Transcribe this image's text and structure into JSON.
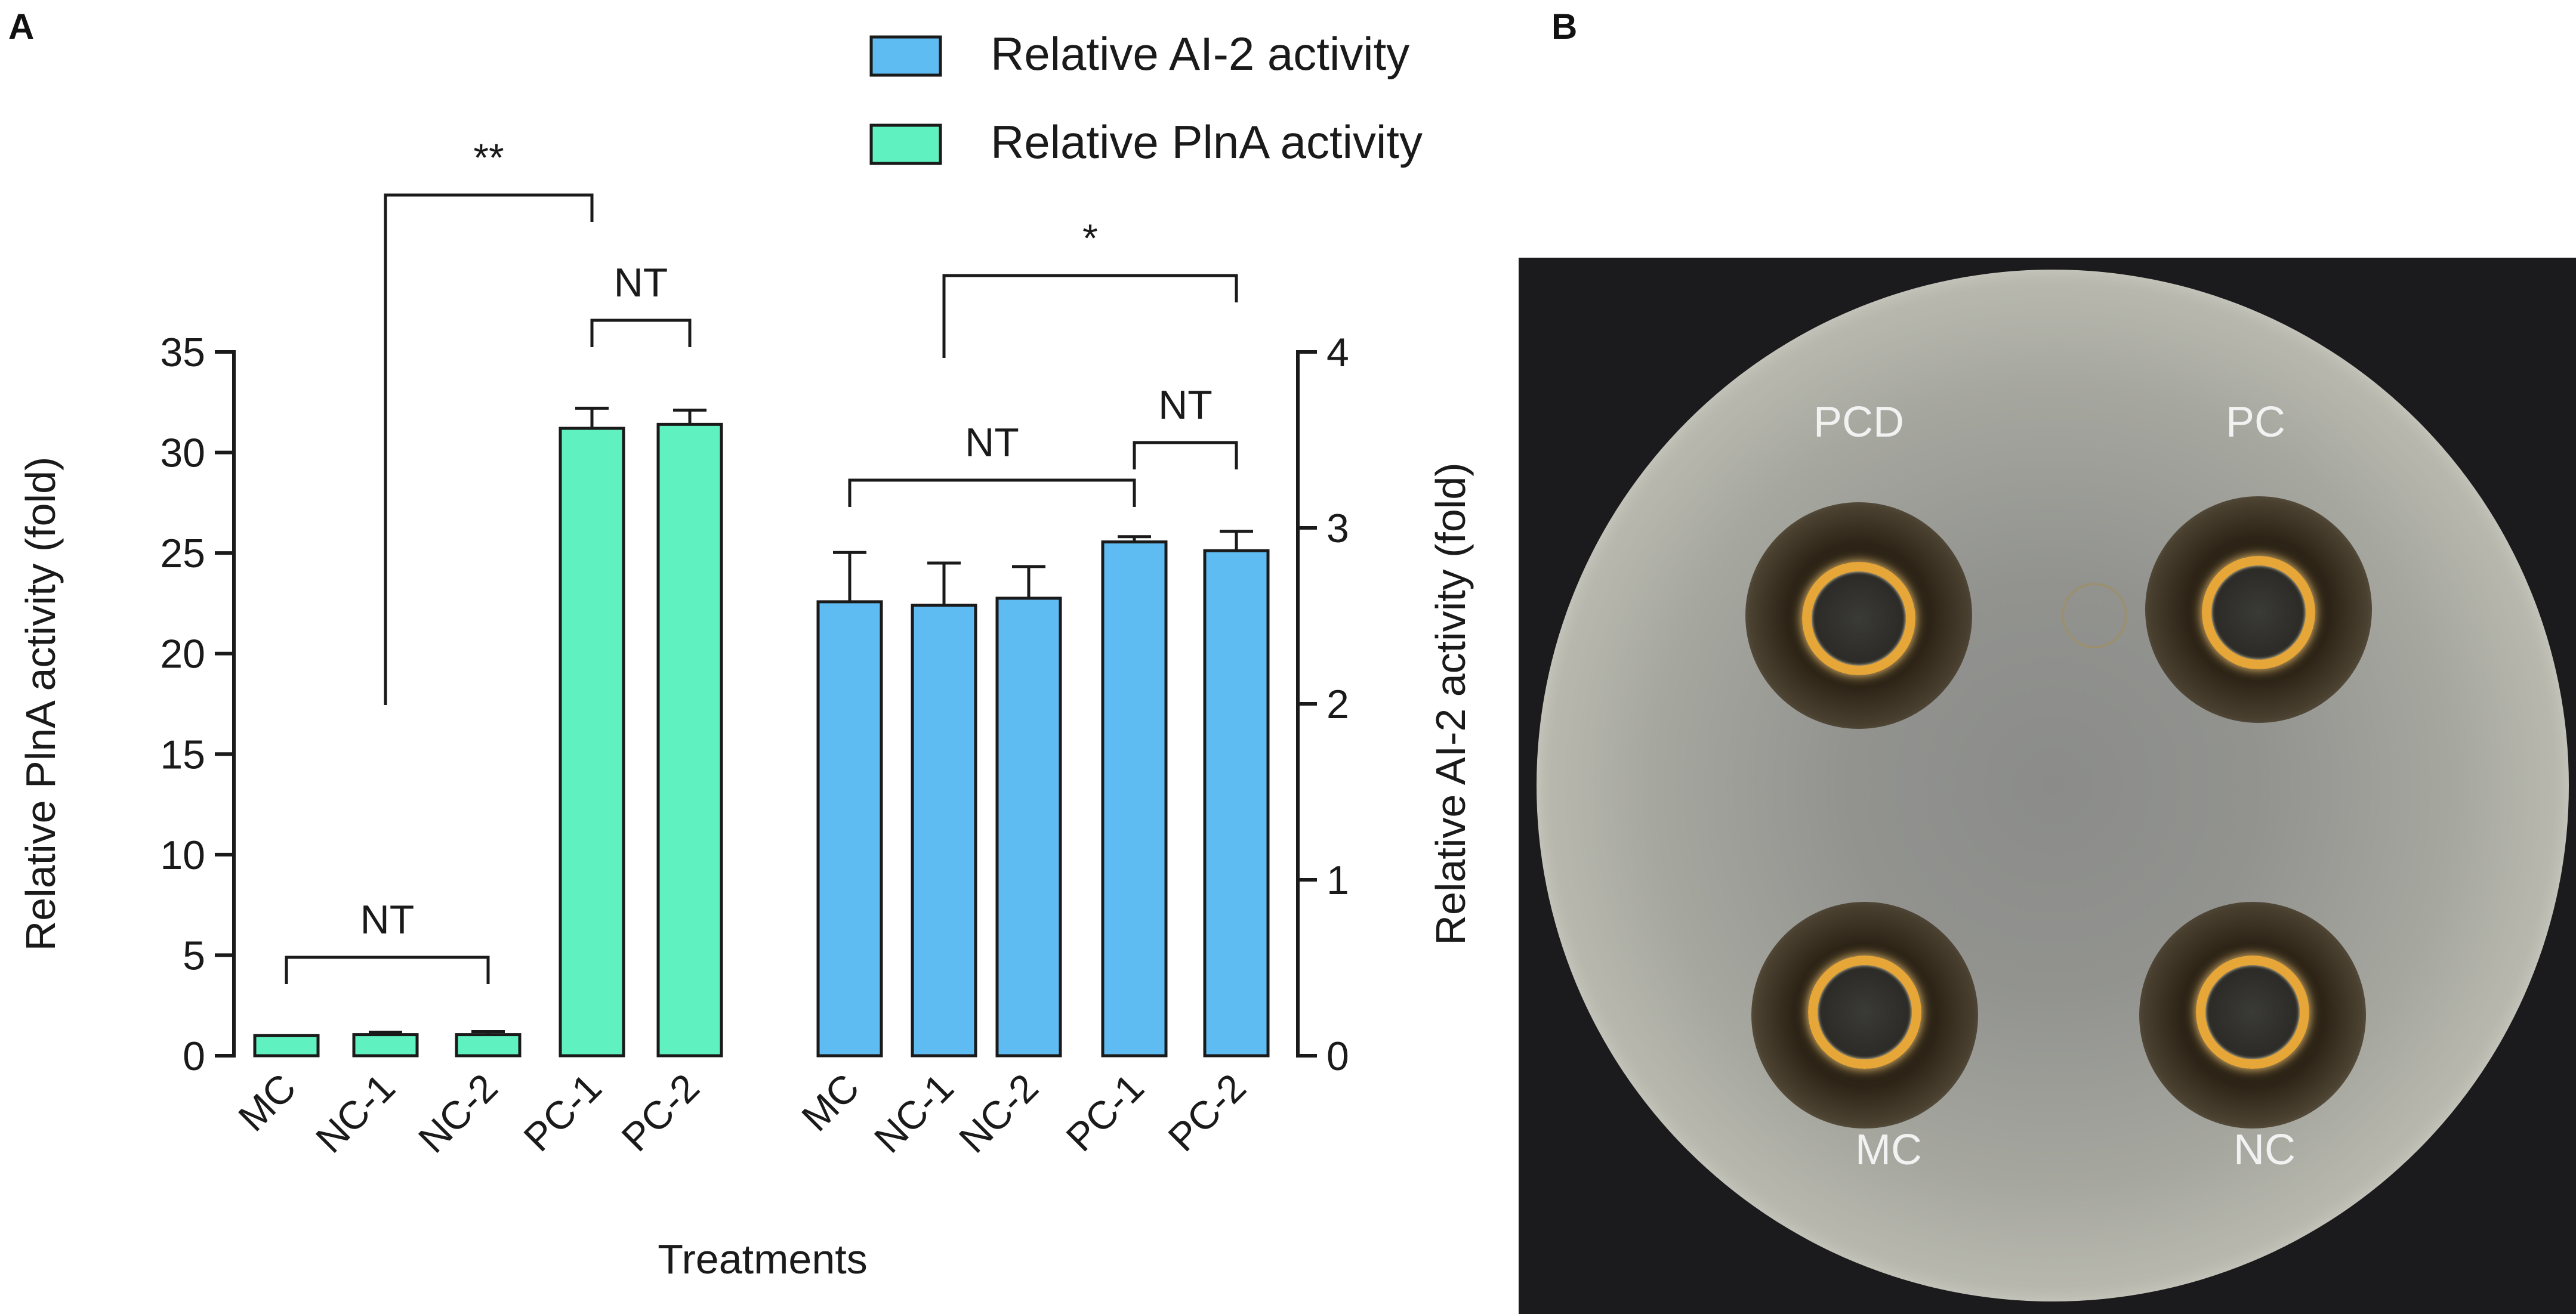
{
  "panels": {
    "a": "A",
    "b": "B"
  },
  "chart_data": {
    "type": "bar",
    "xlabel": "Treatments",
    "ylabel_left": "Relative PlnA activity (fold)",
    "ylabel_right": "Relative AI-2 activity (fold)",
    "ylim_left": [
      0,
      35
    ],
    "ylim_right": [
      0,
      4
    ],
    "yticks_left": [
      "0",
      "5",
      "10",
      "15",
      "20",
      "25",
      "30",
      "35"
    ],
    "yticks_right": [
      "0",
      "1",
      "2",
      "3",
      "4"
    ],
    "legend": {
      "placement": "top",
      "entries": [
        "Relative AI-2 activity",
        "Relative PlnA activity"
      ]
    },
    "colors": {
      "ai2": "#5ebcf2",
      "plna": "#5ff2c0"
    },
    "grid": false,
    "series": [
      {
        "name": "Relative PlnA activity",
        "axis": "left",
        "categories": [
          "MC",
          "NC-1",
          "NC-2",
          "PC-1",
          "PC-2"
        ],
        "values": [
          1.0,
          1.05,
          1.05,
          31.2,
          31.4
        ],
        "errors": [
          0.0,
          0.12,
          0.15,
          1.0,
          0.7
        ]
      },
      {
        "name": "Relative AI-2 activity",
        "axis": "right",
        "categories": [
          "MC",
          "NC-1",
          "NC-2",
          "PC-1",
          "PC-2"
        ],
        "values": [
          2.58,
          2.56,
          2.6,
          2.92,
          2.87
        ],
        "errors": [
          0.28,
          0.24,
          0.18,
          0.03,
          0.11
        ]
      }
    ],
    "annotations": [
      {
        "text": "NT",
        "from": "PlnA:MC",
        "to": "PlnA:NC-2"
      },
      {
        "text": "NT",
        "from": "PlnA:PC-1",
        "to": "PlnA:PC-2"
      },
      {
        "text": "**",
        "from": "PlnA:NC-1",
        "to": "PlnA:PC-1"
      },
      {
        "text": "NT",
        "from": "AI-2:MC",
        "to": "AI-2:PC-1"
      },
      {
        "text": "NT",
        "from": "AI-2:PC-1",
        "to": "AI-2:PC-2"
      },
      {
        "text": "*",
        "from": "AI-2:NC-1",
        "to": "AI-2:PC-2"
      }
    ]
  },
  "plate": {
    "labels": {
      "pcd": "PCD",
      "pc": "PC",
      "mc": "MC",
      "nc": "NC"
    }
  }
}
